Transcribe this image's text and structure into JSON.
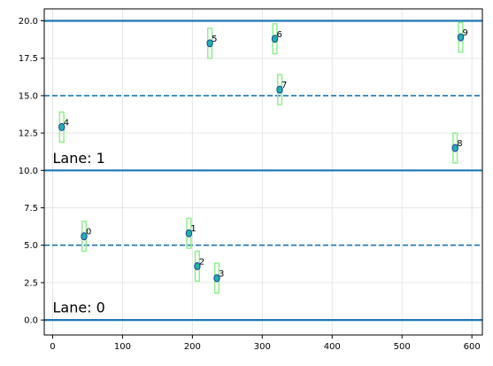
{
  "chart_data": {
    "type": "scatter",
    "title": "",
    "xlabel": "",
    "ylabel": "",
    "xlim": [
      -12,
      615
    ],
    "ylim": [
      -1,
      20.8
    ],
    "grid": true,
    "x_ticks": [
      0,
      100,
      200,
      300,
      400,
      500,
      600
    ],
    "y_ticks": [
      0.0,
      2.5,
      5.0,
      7.5,
      10.0,
      12.5,
      15.0,
      17.5,
      20.0
    ],
    "x_tick_labels": [
      "0",
      "100",
      "200",
      "300",
      "400",
      "500",
      "600"
    ],
    "y_tick_labels": [
      "0.0",
      "2.5",
      "5.0",
      "7.5",
      "10.0",
      "12.5",
      "15.0",
      "17.5",
      "20.0"
    ],
    "lane_boundaries": [
      0,
      10,
      20
    ],
    "lane_centers": [
      5,
      15
    ],
    "lane_labels": [
      {
        "text": "Lane: 0",
        "x": 0,
        "y": 0.5
      },
      {
        "text": "Lane: 1",
        "x": 0,
        "y": 10.5
      }
    ],
    "box_half_height": 1.0,
    "box_half_width": 3,
    "points": [
      {
        "label": "0",
        "x": 45,
        "y": 5.6
      },
      {
        "label": "1",
        "x": 195,
        "y": 5.8
      },
      {
        "label": "2",
        "x": 207,
        "y": 3.6
      },
      {
        "label": "3",
        "x": 235,
        "y": 2.8
      },
      {
        "label": "4",
        "x": 13,
        "y": 12.9
      },
      {
        "label": "5",
        "x": 225,
        "y": 18.5
      },
      {
        "label": "6",
        "x": 318,
        "y": 18.8
      },
      {
        "label": "7",
        "x": 325,
        "y": 15.4
      },
      {
        "label": "8",
        "x": 576,
        "y": 11.5
      },
      {
        "label": "9",
        "x": 584,
        "y": 18.9
      }
    ],
    "colors": {
      "line": "#1f77b4",
      "box": "#90ee90",
      "point_face": "#20b2aa",
      "point_edge": "#1f3f9f",
      "grid": "#e6e6e6"
    }
  }
}
